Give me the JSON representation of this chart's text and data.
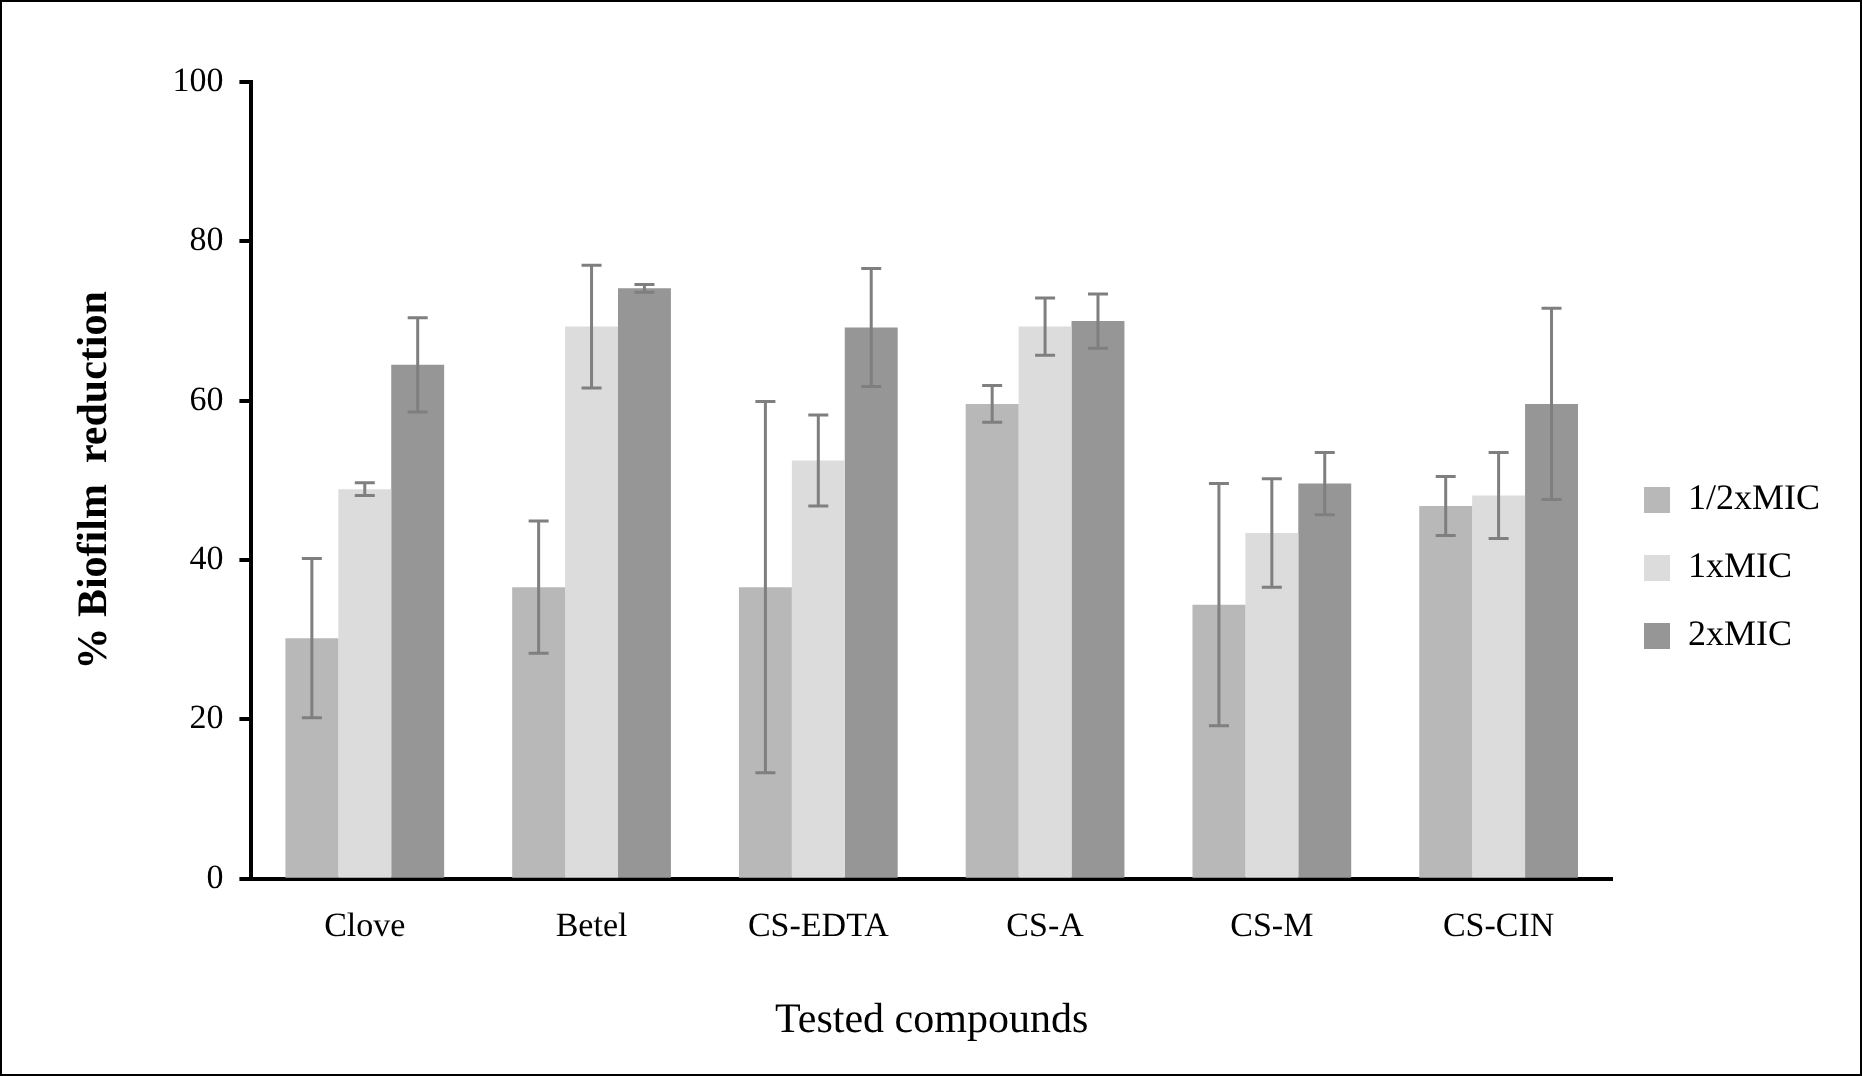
{
  "chart_data": {
    "type": "bar",
    "xlabel": "Tested compounds",
    "ylabel": "% Biofilm  reduction",
    "categories": [
      "Clove",
      "Betel",
      "CS-EDTA",
      "CS-A",
      "CS-M",
      "CS-CIN"
    ],
    "series": [
      {
        "name": "1/2xMIC",
        "color": "#b8b8b8",
        "values": [
          30.2,
          36.6,
          36.6,
          59.6,
          34.4,
          46.8
        ],
        "errors": [
          10,
          8.3,
          23.3,
          2.3,
          15.2,
          3.7
        ]
      },
      {
        "name": "1xMIC",
        "color": "#dcdcdc",
        "values": [
          48.9,
          69.3,
          52.5,
          69.3,
          43.4,
          48.1
        ],
        "errors": [
          0.8,
          7.7,
          5.7,
          3.6,
          6.8,
          5.4
        ]
      },
      {
        "name": "2xMIC",
        "color": "#969696",
        "values": [
          64.5,
          74.1,
          69.2,
          70.0,
          49.6,
          59.6
        ],
        "errors": [
          5.9,
          0.5,
          7.4,
          3.4,
          3.9,
          12
        ]
      }
    ],
    "ylim": [
      0,
      100
    ],
    "yticks": [
      0,
      20,
      40,
      60,
      80,
      100
    ],
    "grid": false,
    "legend": "right"
  }
}
